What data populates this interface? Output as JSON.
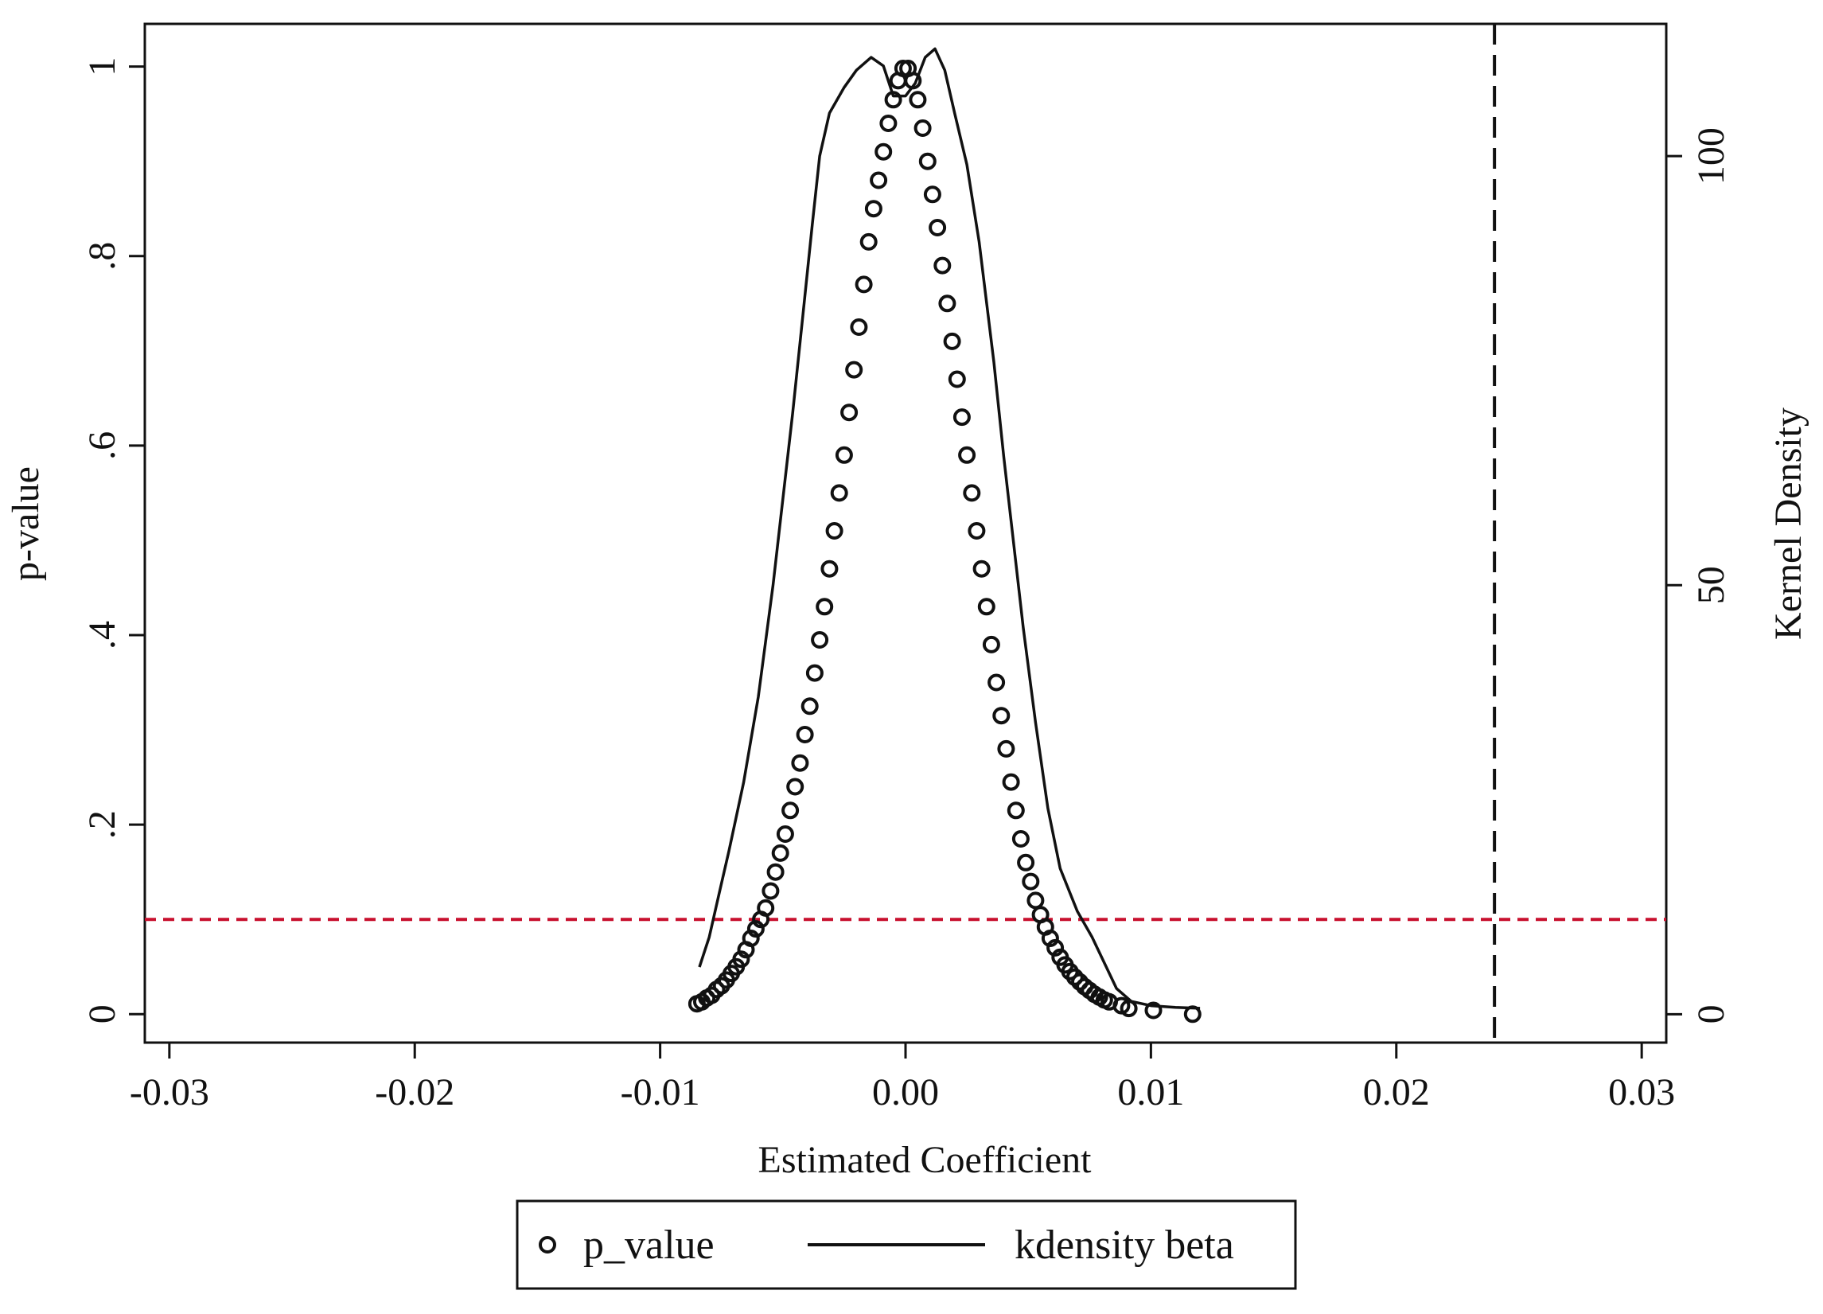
{
  "chart_data": {
    "type": "scatter",
    "xlabel": "Estimated Coefficient",
    "ylabel_left": "p-value",
    "ylabel_right": "Kernel Density",
    "xlim": [
      -0.031,
      0.031
    ],
    "ylim_left": [
      -0.03,
      1.045
    ],
    "ylim_right": [
      -3.3,
      115.4
    ],
    "x_ticks": [
      -0.03,
      -0.02,
      -0.01,
      0.0,
      0.01,
      0.02,
      0.03
    ],
    "x_tick_labels": [
      "-0.03",
      "-0.02",
      "-0.01",
      "0.00",
      "0.01",
      "0.02",
      "0.03"
    ],
    "y_left_ticks": [
      0,
      0.2,
      0.4,
      0.6,
      0.8,
      1
    ],
    "y_left_tick_labels": [
      "0",
      ".2",
      ".4",
      ".6",
      ".8",
      "1"
    ],
    "y_right_ticks": [
      0,
      50,
      100
    ],
    "y_right_tick_labels": [
      "0",
      "50",
      "100"
    ],
    "reference_lines": {
      "p_threshold": {
        "axis": "y_left",
        "value": 0.1,
        "color": "#c8102e",
        "style": "dashed"
      },
      "true_estimate": {
        "axis": "x",
        "value": 0.024,
        "color": "#111111",
        "style": "dashed"
      }
    },
    "legend": {
      "position": "bottom",
      "entries": [
        {
          "label": "p_value",
          "marker": "hollow-circle"
        },
        {
          "label": "kdensity beta",
          "marker": "line"
        }
      ]
    },
    "series": [
      {
        "name": "p_value",
        "kind": "scatter",
        "axis": "left",
        "marker_color": "#111111",
        "points": [
          [
            -0.0085,
            0.011
          ],
          [
            -0.0083,
            0.013
          ],
          [
            -0.0081,
            0.017
          ],
          [
            -0.0079,
            0.02
          ],
          [
            -0.0077,
            0.026
          ],
          [
            -0.0075,
            0.03
          ],
          [
            -0.0073,
            0.036
          ],
          [
            -0.0071,
            0.043
          ],
          [
            -0.0069,
            0.05
          ],
          [
            -0.0067,
            0.058
          ],
          [
            -0.0065,
            0.068
          ],
          [
            -0.0063,
            0.08
          ],
          [
            -0.0061,
            0.09
          ],
          [
            -0.0059,
            0.1
          ],
          [
            -0.0057,
            0.112
          ],
          [
            -0.0055,
            0.13
          ],
          [
            -0.0053,
            0.15
          ],
          [
            -0.0051,
            0.17
          ],
          [
            -0.0049,
            0.19
          ],
          [
            -0.0047,
            0.215
          ],
          [
            -0.0045,
            0.24
          ],
          [
            -0.0043,
            0.265
          ],
          [
            -0.0041,
            0.295
          ],
          [
            -0.0039,
            0.325
          ],
          [
            -0.0037,
            0.36
          ],
          [
            -0.0035,
            0.395
          ],
          [
            -0.0033,
            0.43
          ],
          [
            -0.0031,
            0.47
          ],
          [
            -0.0029,
            0.51
          ],
          [
            -0.0027,
            0.55
          ],
          [
            -0.0025,
            0.59
          ],
          [
            -0.0023,
            0.635
          ],
          [
            -0.0021,
            0.68
          ],
          [
            -0.0019,
            0.725
          ],
          [
            -0.0017,
            0.77
          ],
          [
            -0.0015,
            0.815
          ],
          [
            -0.0013,
            0.85
          ],
          [
            -0.0011,
            0.88
          ],
          [
            -0.0009,
            0.91
          ],
          [
            -0.0007,
            0.94
          ],
          [
            -0.0005,
            0.965
          ],
          [
            -0.0003,
            0.985
          ],
          [
            -0.0001,
            0.998
          ],
          [
            0.0001,
            0.998
          ],
          [
            0.0003,
            0.985
          ],
          [
            0.0005,
            0.965
          ],
          [
            0.0007,
            0.935
          ],
          [
            0.0009,
            0.9
          ],
          [
            0.0011,
            0.865
          ],
          [
            0.0013,
            0.83
          ],
          [
            0.0015,
            0.79
          ],
          [
            0.0017,
            0.75
          ],
          [
            0.0019,
            0.71
          ],
          [
            0.0021,
            0.67
          ],
          [
            0.0023,
            0.63
          ],
          [
            0.0025,
            0.59
          ],
          [
            0.0027,
            0.55
          ],
          [
            0.0029,
            0.51
          ],
          [
            0.0031,
            0.47
          ],
          [
            0.0033,
            0.43
          ],
          [
            0.0035,
            0.39
          ],
          [
            0.0037,
            0.35
          ],
          [
            0.0039,
            0.315
          ],
          [
            0.0041,
            0.28
          ],
          [
            0.0043,
            0.245
          ],
          [
            0.0045,
            0.215
          ],
          [
            0.0047,
            0.185
          ],
          [
            0.0049,
            0.16
          ],
          [
            0.0051,
            0.14
          ],
          [
            0.0053,
            0.12
          ],
          [
            0.0055,
            0.105
          ],
          [
            0.0057,
            0.092
          ],
          [
            0.0059,
            0.08
          ],
          [
            0.0061,
            0.07
          ],
          [
            0.0063,
            0.06
          ],
          [
            0.0065,
            0.052
          ],
          [
            0.0067,
            0.045
          ],
          [
            0.0069,
            0.039
          ],
          [
            0.0071,
            0.034
          ],
          [
            0.0073,
            0.029
          ],
          [
            0.0075,
            0.025
          ],
          [
            0.0077,
            0.021
          ],
          [
            0.0079,
            0.018
          ],
          [
            0.0081,
            0.015
          ],
          [
            0.0083,
            0.013
          ],
          [
            0.0088,
            0.009
          ],
          [
            0.0091,
            0.006
          ],
          [
            0.0101,
            0.004
          ],
          [
            0.0117,
            0.0
          ]
        ]
      },
      {
        "name": "kdensity beta",
        "kind": "line",
        "axis": "right",
        "line_color": "#111111",
        "points": [
          [
            -0.0084,
            5.5
          ],
          [
            -0.008,
            9
          ],
          [
            -0.0076,
            14
          ],
          [
            -0.0072,
            19
          ],
          [
            -0.0066,
            27
          ],
          [
            -0.006,
            37
          ],
          [
            -0.0054,
            50
          ],
          [
            -0.005,
            60
          ],
          [
            -0.0046,
            70
          ],
          [
            -0.0042,
            81
          ],
          [
            -0.0038,
            92
          ],
          [
            -0.0035,
            100
          ],
          [
            -0.0031,
            105
          ],
          [
            -0.0025,
            108
          ],
          [
            -0.002,
            110
          ],
          [
            -0.0014,
            111.5
          ],
          [
            -0.0009,
            110.5
          ],
          [
            -0.0005,
            107
          ],
          [
            0.0,
            107
          ],
          [
            0.0004,
            108.5
          ],
          [
            0.0008,
            111.5
          ],
          [
            0.0012,
            112.5
          ],
          [
            0.0016,
            110
          ],
          [
            0.002,
            105
          ],
          [
            0.0025,
            99
          ],
          [
            0.003,
            90
          ],
          [
            0.0036,
            76
          ],
          [
            0.004,
            65
          ],
          [
            0.0044,
            55
          ],
          [
            0.0048,
            45
          ],
          [
            0.0053,
            34
          ],
          [
            0.0058,
            24
          ],
          [
            0.0063,
            17
          ],
          [
            0.007,
            12
          ],
          [
            0.0076,
            9
          ],
          [
            0.0081,
            6
          ],
          [
            0.0086,
            3
          ],
          [
            0.0092,
            1.5
          ],
          [
            0.01,
            1
          ],
          [
            0.011,
            0.8
          ],
          [
            0.012,
            0.7
          ]
        ]
      }
    ]
  }
}
